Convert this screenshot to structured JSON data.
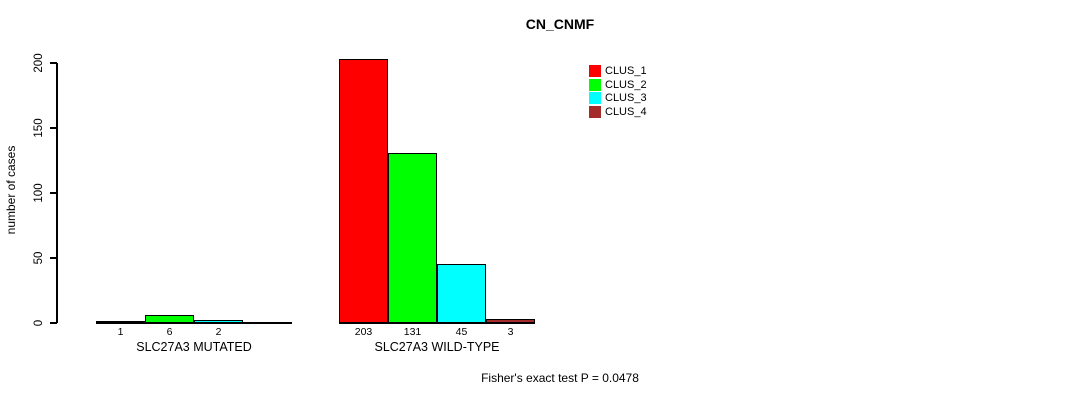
{
  "figure": {
    "title": "CN_CNMF",
    "ylabel": "number of cases",
    "footer": "Fisher's exact test P = 0.0478"
  },
  "chart_data": {
    "type": "bar",
    "title": "CN_CNMF",
    "xlabel": "",
    "ylabel": "number of cases",
    "ylim": [
      0,
      200
    ],
    "yticks": [
      0,
      50,
      100,
      150,
      200
    ],
    "grid": false,
    "legend_position": "top-right",
    "categories": [
      "SLC27A3 MUTATED",
      "SLC27A3 WILD-TYPE"
    ],
    "series": [
      {
        "name": "CLUS_1",
        "color": "#FF0000",
        "values": [
          1,
          203
        ]
      },
      {
        "name": "CLUS_2",
        "color": "#00FF00",
        "values": [
          6,
          131
        ]
      },
      {
        "name": "CLUS_3",
        "color": "#00FFFF",
        "values": [
          2,
          45
        ]
      },
      {
        "name": "CLUS_4",
        "color": "#A52A2A",
        "values": [
          0,
          3
        ]
      }
    ],
    "bar_value_labels_shown": true,
    "zero_value_bars_hidden": true,
    "annotation": "Fisher's exact test P = 0.0478"
  }
}
